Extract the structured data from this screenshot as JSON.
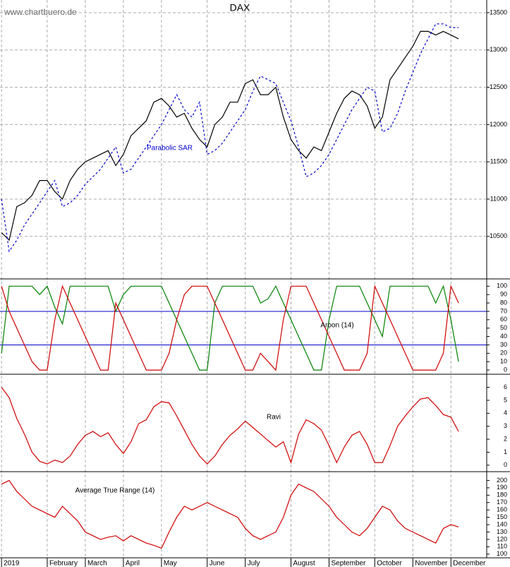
{
  "source": "www.chartbuero.de",
  "chart_data": [
    {
      "type": "line",
      "title": "DAX",
      "ylim": [
        9930,
        13670
      ],
      "yticks": [
        10500,
        11000,
        11500,
        12000,
        12500,
        13000,
        13500
      ],
      "grid": true,
      "series": [
        {
          "color": "#000000",
          "dash": false,
          "values": [
            10550,
            10450,
            10900,
            10950,
            11050,
            11250,
            11250,
            11100,
            11000,
            11250,
            11400,
            11500,
            11550,
            11600,
            11650,
            11450,
            11600,
            11850,
            11950,
            12050,
            12300,
            12350,
            12250,
            12100,
            12150,
            11950,
            11800,
            11700,
            12000,
            12100,
            12300,
            12300,
            12550,
            12600,
            12400,
            12400,
            12500,
            12100,
            11800,
            11650,
            11550,
            11700,
            11650,
            11900,
            12150,
            12350,
            12450,
            12400,
            12250,
            11950,
            12100,
            12600,
            12750,
            12900,
            13050,
            13250,
            13250,
            13200,
            13250,
            13200,
            13150
          ]
        },
        {
          "name": "Parabolic SAR",
          "color": "#0000cc",
          "dash": true,
          "values": [
            11000,
            10300,
            10450,
            10650,
            10800,
            10950,
            11100,
            11250,
            10900,
            10950,
            11050,
            11200,
            11300,
            11400,
            11550,
            11700,
            11350,
            11400,
            11550,
            11700,
            11850,
            12000,
            12200,
            12400,
            12200,
            12100,
            12300,
            11600,
            11650,
            11750,
            11900,
            12050,
            12200,
            12450,
            12650,
            12600,
            12550,
            12300,
            12050,
            11700,
            11300,
            11350,
            11450,
            11600,
            11800,
            12000,
            12200,
            12350,
            12500,
            12450,
            11900,
            11950,
            12150,
            12450,
            12700,
            12950,
            13150,
            13350,
            13350,
            13300,
            13300
          ]
        }
      ]
    },
    {
      "type": "line",
      "title": "Aroon (14)",
      "ylim": [
        -5,
        107
      ],
      "yticks": [
        0,
        10,
        20,
        30,
        40,
        50,
        60,
        70,
        80,
        90,
        100
      ],
      "levels": [
        70,
        30
      ],
      "level_color": "#0000cc",
      "series": [
        {
          "color": "#008000",
          "dash": false,
          "values": [
            20,
            100,
            100,
            100,
            100,
            90,
            100,
            75,
            55,
            100,
            100,
            100,
            100,
            100,
            100,
            70,
            90,
            100,
            100,
            100,
            100,
            100,
            80,
            60,
            40,
            20,
            0,
            0,
            80,
            100,
            100,
            100,
            100,
            100,
            80,
            85,
            100,
            80,
            60,
            40,
            20,
            0,
            0,
            60,
            100,
            100,
            100,
            100,
            80,
            60,
            40,
            100,
            100,
            100,
            100,
            100,
            100,
            80,
            100,
            60,
            10
          ]
        },
        {
          "color": "#d00000",
          "dash": false,
          "values": [
            100,
            70,
            50,
            30,
            10,
            0,
            0,
            60,
            100,
            80,
            60,
            40,
            20,
            0,
            0,
            80,
            60,
            40,
            20,
            0,
            0,
            0,
            20,
            60,
            90,
            100,
            100,
            100,
            80,
            60,
            40,
            20,
            0,
            0,
            20,
            10,
            0,
            60,
            100,
            100,
            100,
            80,
            60,
            40,
            20,
            0,
            0,
            0,
            20,
            100,
            80,
            60,
            40,
            20,
            0,
            0,
            0,
            0,
            20,
            100,
            80
          ]
        }
      ]
    },
    {
      "type": "line",
      "title": "Ravi",
      "ylim": [
        -0.5,
        6.9
      ],
      "yticks": [
        0,
        1,
        2,
        3,
        4,
        5,
        6
      ],
      "series": [
        {
          "color": "#d00000",
          "dash": false,
          "values": [
            6.0,
            5.2,
            3.6,
            2.4,
            1.0,
            0.3,
            0.1,
            0.4,
            0.2,
            0.7,
            1.6,
            2.3,
            2.6,
            2.2,
            2.5,
            1.6,
            0.9,
            1.8,
            3.2,
            3.5,
            4.5,
            4.9,
            4.8,
            3.8,
            2.7,
            1.6,
            0.7,
            0.1,
            0.7,
            1.6,
            2.3,
            2.8,
            3.4,
            2.9,
            2.4,
            1.9,
            1.4,
            1.8,
            0.2,
            2.4,
            3.5,
            3.2,
            2.7,
            1.5,
            0.2,
            1.4,
            2.3,
            2.6,
            1.6,
            0.2,
            0.2,
            1.5,
            3.0,
            3.8,
            4.5,
            5.1,
            5.2,
            4.6,
            3.9,
            3.7,
            2.6
          ]
        }
      ]
    },
    {
      "type": "line",
      "title": "Average True Range (14)",
      "ylim": [
        95,
        210
      ],
      "yticks": [
        100,
        110,
        120,
        130,
        140,
        150,
        160,
        170,
        180,
        190,
        200
      ],
      "xlim": [
        -0.2,
        63.7
      ],
      "xticks": [
        {
          "value": 0,
          "label": "2019"
        },
        {
          "value": 6,
          "label": "February"
        },
        {
          "value": 11,
          "label": "March"
        },
        {
          "value": 16,
          "label": "April"
        },
        {
          "value": 21,
          "label": "May"
        },
        {
          "value": 27,
          "label": "June"
        },
        {
          "value": 32,
          "label": "July"
        },
        {
          "value": 38,
          "label": "August"
        },
        {
          "value": 43,
          "label": "September"
        },
        {
          "value": 49,
          "label": "October"
        },
        {
          "value": 54,
          "label": "November"
        },
        {
          "value": 59,
          "label": "December"
        }
      ],
      "series": [
        {
          "color": "#d00000",
          "dash": false,
          "values": [
            195,
            200,
            185,
            175,
            165,
            160,
            155,
            150,
            165,
            155,
            145,
            130,
            125,
            120,
            123,
            125,
            118,
            125,
            120,
            115,
            112,
            108,
            130,
            150,
            165,
            160,
            165,
            170,
            165,
            160,
            155,
            150,
            135,
            125,
            120,
            125,
            130,
            150,
            180,
            195,
            190,
            185,
            175,
            165,
            150,
            140,
            130,
            125,
            135,
            150,
            165,
            160,
            145,
            135,
            130,
            125,
            120,
            115,
            135,
            140,
            137
          ]
        }
      ]
    }
  ]
}
